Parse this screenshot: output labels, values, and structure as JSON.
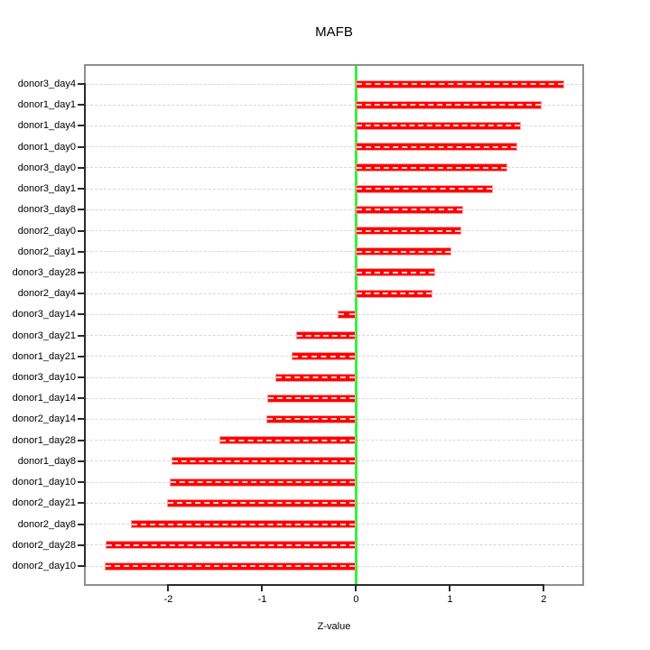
{
  "chart_data": {
    "type": "bar",
    "orientation": "horizontal",
    "title": "MAFB",
    "xlabel": "Z-value",
    "ylabel": "",
    "categories": [
      "donor3_day4",
      "donor1_day1",
      "donor1_day4",
      "donor1_day0",
      "donor3_day0",
      "donor3_day1",
      "donor3_day8",
      "donor2_day0",
      "donor2_day1",
      "donor3_day28",
      "donor2_day4",
      "donor3_day14",
      "donor3_day21",
      "donor1_day21",
      "donor3_day10",
      "donor1_day14",
      "donor2_day14",
      "donor1_day28",
      "donor1_day8",
      "donor1_day10",
      "donor2_day21",
      "donor2_day8",
      "donor2_day28",
      "donor2_day10"
    ],
    "values": [
      2.22,
      1.98,
      1.76,
      1.72,
      1.61,
      1.46,
      1.14,
      1.12,
      1.02,
      0.84,
      0.81,
      -0.2,
      -0.64,
      -0.69,
      -0.86,
      -0.95,
      -0.96,
      -1.46,
      -1.97,
      -1.99,
      -2.01,
      -2.4,
      -2.67,
      -2.68
    ],
    "x_ticks": [
      -2,
      -1,
      0,
      1,
      2
    ],
    "xlim": [
      -2.88,
      2.41
    ],
    "grid": true,
    "legend_position": "none",
    "bar_color": "#ff0000",
    "zero_line_color": "#36f336",
    "gridline_color": "#d7d7d7",
    "box_color": "#8f8f8f",
    "axis_color": "#2b2b2b"
  }
}
